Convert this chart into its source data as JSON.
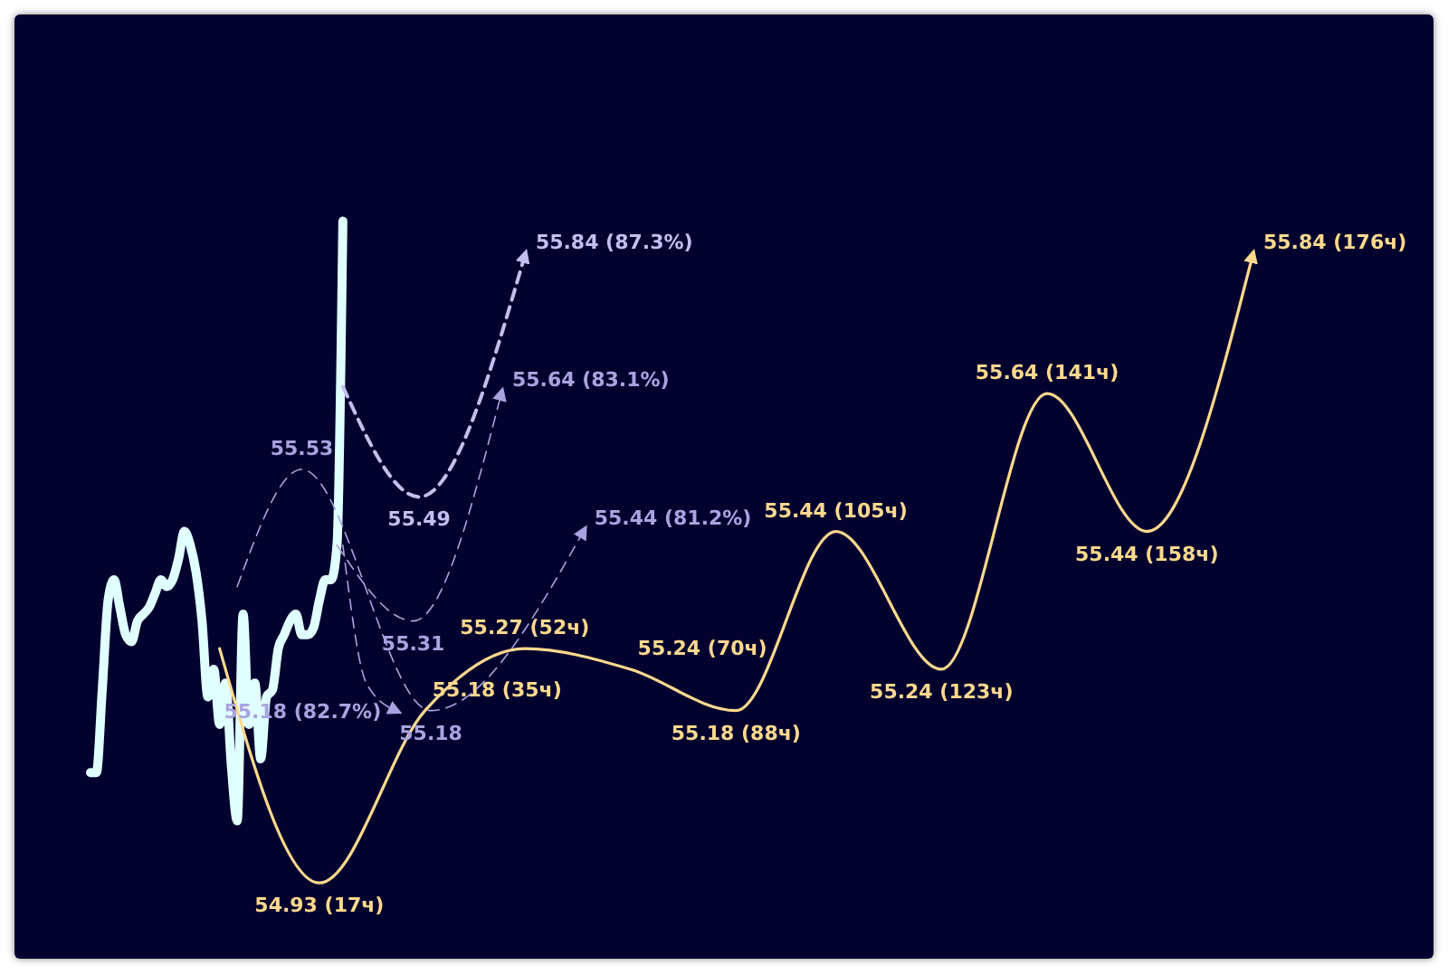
{
  "chart_data": {
    "type": "line",
    "ylim": [
      54.82,
      56.19
    ],
    "categories": [
      null,
      null,
      null,
      null,
      null,
      null,
      null,
      null,
      null,
      null,
      null,
      null,
      null,
      null,
      null,
      null,
      null,
      null,
      null,
      null,
      null,
      null,
      null,
      null,
      null,
      null,
      null,
      null,
      null,
      null,
      null,
      null,
      null,
      null,
      null,
      null,
      null,
      null,
      null,
      null,
      null,
      null,
      null,
      null,
      null,
      null,
      null,
      null,
      null,
      null,
      null,
      null,
      null,
      null,
      null,
      null,
      null,
      null,
      null,
      null,
      null,
      null,
      null,
      null,
      null,
      null,
      null,
      null,
      null,
      null,
      null,
      null,
      null,
      null,
      null,
      null,
      null,
      null,
      null,
      null,
      null,
      null,
      null,
      null,
      null,
      null,
      null,
      null,
      null,
      null,
      null,
      null,
      null,
      null,
      null,
      null,
      null,
      null,
      null,
      null,
      null,
      null,
      null,
      null,
      null,
      null,
      null,
      null,
      null,
      null,
      null,
      null,
      null,
      null,
      null,
      null,
      null,
      null,
      null,
      null,
      null,
      null,
      null,
      null,
      null,
      null,
      null,
      null,
      null,
      null,
      null,
      null,
      null,
      null,
      null,
      null,
      null,
      null,
      null,
      null,
      null,
      null,
      null,
      null,
      null,
      null,
      null,
      null,
      null,
      null,
      null,
      null,
      null,
      null,
      null,
      null,
      null,
      null,
      null,
      null,
      null,
      null,
      null,
      null,
      null,
      null,
      null,
      null,
      null,
      null,
      null,
      null,
      null,
      null,
      null,
      null,
      null,
      null,
      null,
      null,
      null,
      null,
      null,
      null,
      null,
      null,
      null,
      null,
      null,
      null,
      null,
      null,
      null,
      null,
      null,
      null,
      null,
      null,
      null
    ],
    "series": [
      {
        "color": "#e0ffff",
        "values": [
          55.09,
          55.09,
          55.21,
          55.34,
          55.37,
          55.33,
          55.29,
          55.28,
          55.31,
          55.32,
          55.33,
          55.35,
          55.37,
          55.36,
          55.37,
          55.4,
          55.44,
          55.42,
          55.38,
          55.31,
          55.2,
          55.24,
          55.16,
          55.22,
          55.1,
          55.02,
          55.32,
          55.16,
          55.22,
          55.11,
          55.2,
          55.21,
          55.27,
          55.29,
          55.31,
          55.32,
          55.29,
          55.29,
          55.3,
          55.34,
          55.37,
          55.37,
          55.42,
          55.89,
          null,
          null,
          null,
          null,
          null,
          null,
          null,
          null,
          null,
          null,
          null,
          null,
          null,
          null,
          null,
          null,
          null,
          null,
          null,
          null,
          null,
          null,
          null,
          null,
          null,
          null,
          null,
          null,
          null,
          null,
          null,
          null,
          null,
          null,
          null,
          null,
          null,
          null,
          null,
          null,
          null,
          null,
          null,
          null,
          null,
          null,
          null,
          null,
          null,
          null,
          null,
          null,
          null,
          null,
          null,
          null,
          null,
          null,
          null,
          null,
          null,
          null,
          null,
          null,
          null,
          null,
          null,
          null,
          null,
          null,
          null,
          null,
          null,
          null,
          null,
          null,
          null,
          null,
          null,
          null,
          null,
          null,
          null,
          null,
          null,
          null,
          null,
          null,
          null,
          null,
          null,
          null,
          null,
          null,
          null,
          null,
          null,
          null,
          null,
          null,
          null,
          null,
          null,
          null,
          null,
          null,
          null,
          null,
          null,
          null,
          null,
          null,
          null,
          null,
          null,
          null,
          null,
          null,
          null,
          null,
          null,
          null,
          null,
          null,
          null,
          null,
          null,
          null,
          null,
          null,
          null,
          null,
          null,
          null,
          null,
          null,
          null,
          null,
          null,
          null,
          null,
          null,
          null,
          null,
          null,
          null,
          null,
          null,
          null,
          null,
          null,
          null,
          null,
          null,
          null
        ]
      },
      {
        "color": "#ffd98e",
        "line_style": "solid",
        "values": [
          null,
          null,
          null,
          null,
          null,
          null,
          null,
          null,
          null,
          null,
          null,
          null,
          null,
          null,
          null,
          null,
          null,
          null,
          null,
          null,
          null,
          null,
          55.27,
          null,
          null,
          null,
          null,
          null,
          null,
          null,
          null,
          null,
          null,
          null,
          null,
          null,
          null,
          null,
          null,
          54.93,
          null,
          null,
          null,
          null,
          null,
          null,
          null,
          null,
          null,
          null,
          null,
          null,
          null,
          null,
          null,
          null,
          null,
          55.18,
          null,
          null,
          null,
          null,
          null,
          null,
          null,
          null,
          null,
          null,
          null,
          null,
          null,
          null,
          null,
          null,
          55.27,
          null,
          null,
          null,
          null,
          null,
          null,
          null,
          null,
          null,
          null,
          null,
          null,
          null,
          null,
          null,
          null,
          null,
          55.24,
          null,
          null,
          null,
          null,
          null,
          null,
          null,
          null,
          null,
          null,
          null,
          null,
          null,
          null,
          null,
          null,
          null,
          55.18,
          null,
          null,
          null,
          null,
          null,
          null,
          null,
          null,
          null,
          null,
          null,
          null,
          null,
          null,
          null,
          null,
          55.44,
          null,
          null,
          null,
          null,
          null,
          null,
          null,
          null,
          null,
          null,
          null,
          null,
          null,
          null,
          null,
          null,
          null,
          55.24,
          null,
          null,
          null,
          null,
          null,
          null,
          null,
          null,
          null,
          null,
          null,
          null,
          null,
          null,
          null,
          null,
          null,
          55.64,
          null,
          null,
          null,
          null,
          null,
          null,
          null,
          null,
          null,
          null,
          null,
          null,
          null,
          null,
          null,
          null,
          55.44,
          null,
          null,
          null,
          null,
          null,
          null,
          null,
          null,
          null,
          null,
          null,
          null,
          null,
          null,
          null,
          null,
          null,
          55.84
        ],
        "value_labels": [
          null,
          null,
          null,
          null,
          null,
          null,
          null,
          null,
          null,
          null,
          null,
          null,
          null,
          null,
          null,
          null,
          null,
          null,
          null,
          null,
          null,
          null,
          null,
          null,
          null,
          null,
          null,
          null,
          null,
          null,
          null,
          null,
          null,
          null,
          null,
          null,
          null,
          null,
          null,
          "54.93 (17ч)",
          null,
          null,
          null,
          null,
          null,
          null,
          null,
          null,
          null,
          null,
          null,
          null,
          null,
          null,
          null,
          null,
          null,
          "55.18 (35ч)",
          null,
          null,
          null,
          null,
          null,
          null,
          null,
          null,
          null,
          null,
          null,
          null,
          null,
          null,
          null,
          null,
          "55.27 (52ч)",
          null,
          null,
          null,
          null,
          null,
          null,
          null,
          null,
          null,
          null,
          null,
          null,
          null,
          null,
          null,
          null,
          null,
          "55.24 (70ч)",
          null,
          null,
          null,
          null,
          null,
          null,
          null,
          null,
          null,
          null,
          null,
          null,
          null,
          null,
          null,
          null,
          null,
          "55.18 (88ч)",
          null,
          null,
          null,
          null,
          null,
          null,
          null,
          null,
          null,
          null,
          null,
          null,
          null,
          null,
          null,
          null,
          "55.44 (105ч)",
          null,
          null,
          null,
          null,
          null,
          null,
          null,
          null,
          null,
          null,
          null,
          null,
          null,
          null,
          null,
          null,
          null,
          "55.24 (123ч)",
          null,
          null,
          null,
          null,
          null,
          null,
          null,
          null,
          null,
          null,
          null,
          null,
          null,
          null,
          null,
          null,
          null,
          "55.64 (141ч)",
          null,
          null,
          null,
          null,
          null,
          null,
          null,
          null,
          null,
          null,
          null,
          null,
          null,
          null,
          null,
          null,
          "55.44 (158ч)",
          null,
          null,
          null,
          null,
          null,
          null,
          null,
          null,
          null,
          null,
          null,
          null,
          null,
          null,
          null,
          null,
          null,
          "55.84 (176ч)"
        ]
      },
      {
        "color": "#c4bdf0",
        "line_style": "dashed",
        "values": [
          null,
          null,
          null,
          null,
          null,
          null,
          null,
          null,
          null,
          null,
          null,
          null,
          null,
          null,
          null,
          null,
          null,
          null,
          null,
          null,
          null,
          null,
          null,
          null,
          null,
          null,
          null,
          null,
          null,
          null,
          null,
          null,
          null,
          null,
          null,
          null,
          null,
          null,
          null,
          null,
          null,
          null,
          null,
          55.65,
          null,
          null,
          null,
          null,
          null,
          null,
          null,
          null,
          null,
          null,
          null,
          null,
          55.49,
          null,
          null,
          null,
          null,
          null,
          null,
          null,
          null,
          null,
          null,
          null,
          null,
          null,
          null,
          null,
          null,
          null,
          55.84,
          null,
          null,
          null,
          null,
          null,
          null,
          null,
          null,
          null,
          null,
          null,
          null,
          null,
          null,
          null,
          null,
          null,
          null,
          null,
          null,
          null,
          null,
          null,
          null,
          null,
          null,
          null,
          null,
          null,
          null,
          null,
          null,
          null,
          null,
          null,
          null,
          null,
          null,
          null,
          null,
          null,
          null,
          null,
          null,
          null,
          null,
          null,
          null,
          null,
          null,
          null,
          null,
          null,
          null,
          null,
          null,
          null,
          null,
          null,
          null,
          null,
          null,
          null,
          null,
          null,
          null,
          null,
          null,
          null,
          null,
          null,
          null,
          null,
          null,
          null,
          null,
          null,
          null,
          null,
          null,
          null,
          null,
          null,
          null,
          null,
          null,
          null,
          null,
          null,
          null,
          null,
          null,
          null,
          null,
          null,
          null,
          null,
          null,
          null,
          null,
          null,
          null,
          null,
          null,
          null,
          null,
          null,
          null,
          null,
          null,
          null,
          null,
          null,
          null,
          null,
          null,
          null,
          null,
          null,
          null,
          null,
          null,
          null,
          null
        ],
        "value_labels": [
          null,
          null,
          null,
          null,
          null,
          null,
          null,
          null,
          null,
          null,
          null,
          null,
          null,
          null,
          null,
          null,
          null,
          null,
          null,
          null,
          null,
          null,
          null,
          null,
          null,
          null,
          null,
          null,
          null,
          null,
          null,
          null,
          null,
          null,
          null,
          null,
          null,
          null,
          null,
          null,
          null,
          null,
          null,
          null,
          null,
          null,
          null,
          null,
          null,
          null,
          null,
          null,
          null,
          null,
          null,
          null,
          "55.49",
          null,
          null,
          null,
          null,
          null,
          null,
          null,
          null,
          null,
          null,
          null,
          null,
          null,
          null,
          null,
          null,
          null,
          "55.84 (87.3%)",
          null,
          null,
          null,
          null,
          null,
          null,
          null,
          null,
          null,
          null,
          null,
          null,
          null,
          null,
          null,
          null,
          null,
          null,
          null,
          null,
          null,
          null,
          null,
          null,
          null,
          null,
          null,
          null,
          null,
          null,
          null,
          null,
          null,
          null,
          null,
          null,
          null,
          null,
          null,
          null,
          null,
          null,
          null,
          null,
          null,
          null,
          null,
          null,
          null,
          null,
          null,
          null,
          null,
          null,
          null,
          null,
          null,
          null,
          null,
          null,
          null,
          null,
          null,
          null,
          null,
          null,
          null,
          null,
          null,
          null,
          null,
          null,
          null,
          null,
          null,
          null,
          null,
          null,
          null,
          null,
          null,
          null,
          null,
          null,
          null,
          null,
          null,
          null,
          null,
          null,
          null,
          null,
          null,
          null,
          null,
          null,
          null,
          null,
          null,
          null,
          null,
          null,
          null,
          null,
          null,
          null,
          null,
          null,
          null,
          null,
          null,
          null,
          null,
          null,
          null,
          null,
          null,
          null,
          null,
          null,
          null,
          null,
          null,
          null
        ]
      },
      {
        "color": "#a9a3e0",
        "line_style": "dashed",
        "values": [
          null,
          null,
          null,
          null,
          null,
          null,
          null,
          null,
          null,
          null,
          null,
          null,
          null,
          null,
          null,
          null,
          null,
          null,
          null,
          null,
          null,
          null,
          null,
          null,
          null,
          null,
          null,
          null,
          null,
          null,
          null,
          null,
          null,
          null,
          null,
          null,
          null,
          null,
          null,
          null,
          null,
          null,
          55.42,
          null,
          null,
          null,
          null,
          null,
          null,
          null,
          null,
          null,
          null,
          null,
          null,
          55.31,
          null,
          null,
          null,
          null,
          null,
          null,
          null,
          null,
          null,
          null,
          null,
          null,
          null,
          null,
          55.64,
          null,
          null,
          null,
          null,
          null,
          null,
          null,
          null,
          null,
          null,
          null,
          null,
          null,
          null,
          null,
          null,
          null,
          null,
          null,
          null,
          null,
          null,
          null,
          null,
          null,
          null,
          null,
          null,
          null,
          null,
          null,
          null,
          null,
          null,
          null,
          null,
          null,
          null,
          null,
          null,
          null,
          null,
          null,
          null,
          null,
          null,
          null,
          null,
          null,
          null,
          null,
          null,
          null,
          null,
          null,
          null,
          null,
          null,
          null,
          null,
          null,
          null,
          null,
          null,
          null,
          null,
          null,
          null,
          null,
          null,
          null,
          null,
          null,
          null,
          null,
          null,
          null,
          null,
          null,
          null,
          null,
          null,
          null,
          null,
          null,
          null,
          null,
          null,
          null,
          null,
          null,
          null,
          null,
          null,
          null,
          null,
          null,
          null,
          null,
          null,
          null,
          null,
          null,
          null,
          null,
          null,
          null,
          null,
          null,
          null,
          null,
          null,
          null,
          null,
          null,
          null,
          null,
          null,
          null,
          null,
          null,
          null,
          null,
          null,
          null,
          null,
          null,
          null
        ],
        "value_labels": [
          null,
          null,
          null,
          null,
          null,
          null,
          null,
          null,
          null,
          null,
          null,
          null,
          null,
          null,
          null,
          null,
          null,
          null,
          null,
          null,
          null,
          null,
          null,
          null,
          null,
          null,
          null,
          null,
          null,
          null,
          null,
          null,
          null,
          null,
          null,
          null,
          null,
          null,
          null,
          null,
          null,
          null,
          null,
          null,
          null,
          null,
          null,
          null,
          null,
          null,
          null,
          null,
          null,
          null,
          null,
          "55.31",
          null,
          null,
          null,
          null,
          null,
          null,
          null,
          null,
          null,
          null,
          null,
          null,
          null,
          null,
          "55.64 (83.1%)",
          null,
          null,
          null,
          null,
          null,
          null,
          null,
          null,
          null,
          null,
          null,
          null,
          null,
          null,
          null,
          null,
          null,
          null,
          null,
          null,
          null,
          null,
          null,
          null,
          null,
          null,
          null,
          null,
          null,
          null,
          null,
          null,
          null,
          null,
          null,
          null,
          null,
          null,
          null,
          null,
          null,
          null,
          null,
          null,
          null,
          null,
          null,
          null,
          null,
          null,
          null,
          null,
          null,
          null,
          null,
          null,
          null,
          null,
          null,
          null,
          null,
          null,
          null,
          null,
          null,
          null,
          null,
          null,
          null,
          null,
          null,
          null,
          null,
          null,
          null,
          null,
          null,
          null,
          null,
          null,
          null,
          null,
          null,
          null,
          null,
          null,
          null,
          null,
          null,
          null,
          null,
          null,
          null,
          null,
          null,
          null,
          null,
          null,
          null,
          null,
          null,
          null,
          null,
          null,
          null,
          null,
          null,
          null,
          null,
          null,
          null,
          null,
          null,
          null,
          null,
          null,
          null,
          null,
          null,
          null,
          null,
          null,
          null,
          null,
          null,
          null,
          null,
          null
        ]
      },
      {
        "color": "#a9a3e0",
        "line_style": "dashed",
        "values": [
          null,
          null,
          null,
          null,
          null,
          null,
          null,
          null,
          null,
          null,
          null,
          null,
          null,
          null,
          null,
          null,
          null,
          null,
          null,
          null,
          null,
          null,
          null,
          null,
          null,
          55.36,
          null,
          null,
          null,
          null,
          null,
          null,
          null,
          null,
          null,
          null,
          55.53,
          null,
          null,
          null,
          null,
          null,
          null,
          null,
          null,
          null,
          null,
          null,
          null,
          null,
          null,
          null,
          null,
          null,
          null,
          null,
          null,
          null,
          55.18,
          null,
          null,
          null,
          null,
          null,
          null,
          null,
          null,
          null,
          null,
          null,
          null,
          null,
          null,
          null,
          null,
          null,
          null,
          null,
          null,
          null,
          null,
          null,
          null,
          null,
          55.44,
          null,
          null,
          null,
          null,
          null,
          null,
          null,
          null,
          null,
          null,
          null,
          null,
          null,
          null,
          null,
          null,
          null,
          null,
          null,
          null,
          null,
          null,
          null,
          null,
          null,
          null,
          null,
          null,
          null,
          null,
          null,
          null,
          null,
          null,
          null,
          null,
          null,
          null,
          null,
          null,
          null,
          null,
          null,
          null,
          null,
          null,
          null,
          null,
          null,
          null,
          null,
          null,
          null,
          null,
          null,
          null,
          null,
          null,
          null,
          null,
          null,
          null,
          null,
          null,
          null,
          null,
          null,
          null,
          null,
          null,
          null,
          null,
          null,
          null,
          null,
          null,
          null,
          null,
          null,
          null,
          null,
          null,
          null,
          null,
          null,
          null,
          null,
          null,
          null,
          null,
          null,
          null,
          null,
          null,
          null,
          null,
          null,
          null,
          null,
          null,
          null,
          null,
          null,
          null,
          null,
          null,
          null,
          null,
          null,
          null,
          null,
          null,
          null,
          null
        ],
        "value_labels": [
          null,
          null,
          null,
          null,
          null,
          null,
          null,
          null,
          null,
          null,
          null,
          null,
          null,
          null,
          null,
          null,
          null,
          null,
          null,
          null,
          null,
          null,
          null,
          null,
          null,
          null,
          null,
          null,
          null,
          null,
          null,
          null,
          null,
          null,
          null,
          null,
          "55.53",
          null,
          null,
          null,
          null,
          null,
          null,
          null,
          null,
          null,
          null,
          null,
          null,
          null,
          null,
          null,
          null,
          null,
          null,
          null,
          null,
          null,
          "55.18",
          null,
          null,
          null,
          null,
          null,
          null,
          null,
          null,
          null,
          null,
          null,
          null,
          null,
          null,
          null,
          null,
          null,
          null,
          null,
          null,
          null,
          null,
          null,
          null,
          null,
          "55.44 (81.2%)",
          null,
          null,
          null,
          null,
          null,
          null,
          null,
          null,
          null,
          null,
          null,
          null,
          null,
          null,
          null,
          null,
          null,
          null,
          null,
          null,
          null,
          null,
          null,
          null,
          null,
          null,
          null,
          null,
          null,
          null,
          null,
          null,
          null,
          null,
          null,
          null,
          null,
          null,
          null,
          null,
          null,
          null,
          null,
          null,
          null,
          null,
          null,
          null,
          null,
          null,
          null,
          null,
          null,
          null,
          null,
          null,
          null,
          null,
          null,
          null,
          null,
          null,
          null,
          null,
          null,
          null,
          null,
          null,
          null,
          null,
          null,
          null,
          null,
          null,
          null,
          null,
          null,
          null,
          null,
          null,
          null,
          null,
          null,
          null,
          null,
          null,
          null,
          null,
          null,
          null,
          null,
          null,
          null,
          null,
          null,
          null,
          null,
          null,
          null,
          null,
          null,
          null,
          null,
          null,
          null,
          null,
          null,
          null,
          null,
          null,
          null,
          null,
          null,
          null
        ]
      },
      {
        "color": "#a9a3e0",
        "line_style": "dashed",
        "values": [
          null,
          null,
          null,
          null,
          null,
          null,
          null,
          null,
          null,
          null,
          null,
          null,
          null,
          null,
          null,
          null,
          null,
          null,
          null,
          null,
          null,
          null,
          null,
          null,
          null,
          null,
          null,
          null,
          null,
          null,
          null,
          null,
          null,
          null,
          null,
          null,
          null,
          null,
          null,
          null,
          null,
          null,
          null,
          55.42,
          null,
          null,
          null,
          55.22,
          null,
          null,
          null,
          null,
          55.18,
          null,
          null,
          null,
          null,
          null,
          null,
          null,
          null,
          null,
          null,
          null,
          null,
          null,
          null,
          null,
          null,
          null,
          null,
          null,
          null,
          null,
          null,
          null,
          null,
          null,
          null,
          null,
          null,
          null,
          null,
          null,
          null,
          null,
          null,
          null,
          null,
          null,
          null,
          null,
          null,
          null,
          null,
          null,
          null,
          null,
          null,
          null,
          null,
          null,
          null,
          null,
          null,
          null,
          null,
          null,
          null,
          null,
          null,
          null,
          null,
          null,
          null,
          null,
          null,
          null,
          null,
          null,
          null,
          null,
          null,
          null,
          null,
          null,
          null,
          null,
          null,
          null,
          null,
          null,
          null,
          null,
          null,
          null,
          null,
          null,
          null,
          null,
          null,
          null,
          null,
          null,
          null,
          null,
          null,
          null,
          null,
          null,
          null,
          null,
          null,
          null,
          null,
          null,
          null,
          null,
          null,
          null,
          null,
          null,
          null,
          null,
          null,
          null,
          null,
          null,
          null,
          null,
          null,
          null,
          null,
          null,
          null,
          null,
          null,
          null,
          null,
          null,
          null,
          null,
          null,
          null,
          null,
          null,
          null,
          null,
          null,
          null,
          null,
          null,
          null,
          null,
          null,
          null,
          null,
          null,
          null
        ],
        "value_labels": [
          null,
          null,
          null,
          null,
          null,
          null,
          null,
          null,
          null,
          null,
          null,
          null,
          null,
          null,
          null,
          null,
          null,
          null,
          null,
          null,
          null,
          null,
          null,
          null,
          null,
          null,
          null,
          null,
          null,
          null,
          null,
          null,
          null,
          null,
          null,
          null,
          null,
          null,
          null,
          null,
          null,
          null,
          null,
          null,
          null,
          null,
          null,
          null,
          null,
          null,
          null,
          null,
          "55.18 (82.7%)",
          null,
          null,
          null,
          null,
          null,
          null,
          null,
          null,
          null,
          null,
          null,
          null,
          null,
          null,
          null,
          null,
          null,
          null,
          null,
          null,
          null,
          null,
          null,
          null,
          null,
          null,
          null,
          null,
          null,
          null,
          null,
          null,
          null,
          null,
          null,
          null,
          null,
          null,
          null,
          null,
          null,
          null,
          null,
          null,
          null,
          null,
          null,
          null,
          null,
          null,
          null,
          null,
          null,
          null,
          null,
          null,
          null,
          null,
          null,
          null,
          null,
          null,
          null,
          null,
          null,
          null,
          null,
          null,
          null,
          null,
          null,
          null,
          null,
          null,
          null,
          null,
          null,
          null,
          null,
          null,
          null,
          null,
          null,
          null,
          null,
          null,
          null,
          null,
          null,
          null,
          null,
          null,
          null,
          null,
          null,
          null,
          null,
          null,
          null,
          null,
          null,
          null,
          null,
          null,
          null,
          null,
          null,
          null,
          null,
          null,
          null,
          null,
          null,
          null,
          null,
          null,
          null,
          null,
          null,
          null,
          null,
          null,
          null,
          null,
          null,
          null,
          null,
          null,
          null,
          null,
          null,
          null,
          null,
          null,
          null,
          null,
          null,
          null,
          null,
          null,
          null,
          null,
          null,
          null,
          null,
          null
        ]
      }
    ]
  }
}
